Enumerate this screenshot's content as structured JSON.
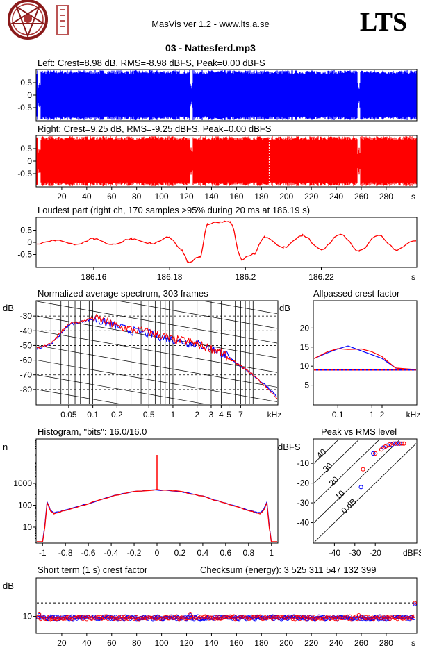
{
  "header": {
    "app_title": "MasVis ver 1.2 - www.lts.a.se",
    "brand": "LTS",
    "file_title": "03 - Nattesferd.mp3"
  },
  "colors": {
    "left": "#0000ff",
    "right": "#ff0000",
    "dashed": "#000000"
  },
  "chart_data": [
    {
      "type": "area",
      "title": "Left: Crest=8.98 dB, RMS=-8.98 dBFS, Peak=0.00 dBFS",
      "series": [
        {
          "name": "Left",
          "color": "#0000ff"
        }
      ],
      "ylim": [
        -1,
        1
      ],
      "y_ticks": [
        0.5,
        0,
        -0.5
      ],
      "y_tick_labels": [
        "0.5",
        "0",
        "-0.5"
      ],
      "x_unit": "s",
      "xlim": [
        0,
        304
      ],
      "envelope": "near full scale throughout",
      "dips_at_s": [
        2,
        124,
        258
      ]
    },
    {
      "type": "area",
      "title": "Right: Crest=9.25 dB, RMS=-9.25 dBFS, Peak=0.00 dBFS",
      "series": [
        {
          "name": "Right",
          "color": "#ff0000"
        }
      ],
      "ylim": [
        -1,
        1
      ],
      "y_ticks": [
        0.5,
        0,
        -0.5
      ],
      "y_tick_labels": [
        "0.5",
        "0",
        "-0.5"
      ],
      "x_ticks": [
        20,
        40,
        60,
        80,
        100,
        120,
        140,
        160,
        180,
        200,
        220,
        240,
        260,
        280
      ],
      "x_tick_labels": [
        "20",
        "40",
        "60",
        "80",
        "100",
        "120",
        "140",
        "160",
        "180",
        "200",
        "220",
        "240",
        "260",
        "280",
        "s"
      ],
      "xlim": [
        0,
        304
      ],
      "marker_at_s": 186.19,
      "dips_at_s": [
        2,
        124,
        258
      ]
    },
    {
      "type": "line",
      "title": "Loudest part (right ch, 170 samples >95% during 20 ms at 186.19 s)",
      "series": [
        {
          "name": "Right",
          "color": "#ff0000"
        }
      ],
      "xlim": [
        186.145,
        186.245
      ],
      "ylim": [
        -1,
        1
      ],
      "y_ticks": [
        0.5,
        0,
        -0.5
      ],
      "y_tick_labels": [
        "0.5",
        "0",
        "-0.5"
      ],
      "x_ticks": [
        186.16,
        186.18,
        186.2,
        186.22
      ],
      "x_tick_labels": [
        "186.16",
        "186.18",
        "186.2",
        "186.22",
        "s"
      ],
      "x": [
        186.145,
        186.15,
        186.155,
        186.16,
        186.165,
        186.17,
        186.175,
        186.18,
        186.183,
        186.185,
        186.188,
        186.19,
        186.193,
        186.196,
        186.199,
        186.202,
        186.205,
        186.21,
        186.215,
        186.22,
        186.225,
        186.23,
        186.235,
        186.24,
        186.245
      ],
      "values": [
        -0.05,
        0.1,
        -0.1,
        0.15,
        -0.1,
        0.15,
        -0.05,
        0.2,
        -0.3,
        -0.8,
        -0.6,
        0.75,
        0.85,
        0.85,
        -0.7,
        -0.5,
        0.2,
        -0.2,
        0.3,
        -0.3,
        0.35,
        -0.35,
        0.3,
        -0.3,
        0.1
      ]
    },
    {
      "type": "line",
      "title": "Normalized average spectrum, 303 frames",
      "xscale": "log",
      "xlim": [
        0.02,
        20
      ],
      "ylim": [
        -90,
        -20
      ],
      "ylabel": "dB",
      "xlabel": "kHz",
      "y_ticks": [
        -30,
        -40,
        -50,
        -60,
        -70,
        -80
      ],
      "y_tick_labels": [
        "-30",
        "-40",
        "-50",
        "-60",
        "-70",
        "-80"
      ],
      "x_ticks": [
        0.05,
        0.1,
        0.2,
        0.5,
        1,
        2,
        3,
        4,
        5,
        7
      ],
      "x_tick_labels": [
        "0.05",
        "0.1",
        "0.2",
        "0.5",
        "1",
        "2",
        "3",
        "4",
        "5",
        "7",
        "kHz"
      ],
      "x": [
        0.02,
        0.03,
        0.04,
        0.05,
        0.07,
        0.1,
        0.15,
        0.2,
        0.3,
        0.5,
        0.7,
        1,
        1.5,
        2,
        3,
        4,
        5,
        7,
        10,
        15,
        20
      ],
      "series": [
        {
          "name": "Left",
          "color": "#0000ff",
          "values": [
            -52,
            -49,
            -42,
            -36,
            -34,
            -32,
            -35,
            -37,
            -40,
            -42,
            -44,
            -46,
            -48,
            -49,
            -52,
            -55,
            -58,
            -64,
            -70,
            -78,
            -85
          ]
        },
        {
          "name": "Right",
          "color": "#ff0000",
          "values": [
            -52,
            -49,
            -41,
            -35,
            -34,
            -31,
            -34,
            -37,
            -39,
            -41,
            -43,
            -46,
            -47,
            -49,
            -52,
            -55,
            -59,
            -64,
            -70,
            -79,
            -86
          ]
        }
      ]
    },
    {
      "type": "line",
      "title": "Allpassed crest factor",
      "xscale": "log",
      "xlim": [
        0.02,
        20
      ],
      "ylim": [
        0,
        27
      ],
      "ylabel": "dB",
      "xlabel": "kHz",
      "y_ticks": [
        5,
        10,
        15,
        20
      ],
      "y_tick_labels": [
        "5",
        "10",
        "15",
        "20"
      ],
      "x_ticks": [
        0.1,
        1,
        2
      ],
      "x_tick_labels": [
        "0.1",
        "1",
        "2",
        "kHz"
      ],
      "reference_dashed": 8.98,
      "x": [
        0.02,
        0.05,
        0.1,
        0.2,
        0.5,
        1,
        2,
        5,
        10,
        20
      ],
      "series": [
        {
          "name": "Left",
          "color": "#0000ff",
          "values": [
            12,
            13.5,
            14.5,
            15.3,
            14,
            13,
            12,
            9.5,
            9.2,
            9
          ]
        },
        {
          "name": "Right",
          "color": "#ff0000",
          "values": [
            12,
            13.8,
            14.6,
            14.4,
            14.5,
            13.8,
            12.5,
            9.5,
            9.3,
            9.1
          ]
        }
      ]
    },
    {
      "type": "line",
      "title": "Histogram, \"bits\": 16.0/16.0",
      "yscale": "log",
      "ylabel": "n",
      "xlim": [
        -1.05,
        1.05
      ],
      "ylim": [
        2,
        100000
      ],
      "y_ticks": [
        10,
        100,
        1000
      ],
      "y_tick_labels": [
        "10",
        "100",
        "1000"
      ],
      "x_ticks": [
        -1,
        -0.8,
        -0.6,
        -0.4,
        -0.2,
        0,
        0.2,
        0.4,
        0.6,
        0.8,
        1
      ],
      "x_tick_labels": [
        "-1",
        "-0.8",
        "-0.6",
        "-0.4",
        "-0.2",
        "0",
        "0.2",
        "0.4",
        "0.6",
        "0.8",
        "1"
      ],
      "x": [
        -1,
        -0.98,
        -0.96,
        -0.93,
        -0.9,
        -0.85,
        -0.8,
        -0.6,
        -0.4,
        -0.2,
        0,
        0.2,
        0.4,
        0.6,
        0.8,
        0.85,
        0.9,
        0.93,
        0.96,
        0.98,
        1
      ],
      "series": [
        {
          "name": "Left",
          "color": "#0000ff",
          "values": [
            2,
            12,
            140,
            60,
            45,
            50,
            60,
            120,
            260,
            430,
            500,
            430,
            260,
            120,
            60,
            50,
            45,
            60,
            140,
            12,
            2
          ]
        },
        {
          "name": "Right",
          "color": "#ff0000",
          "values": [
            2,
            10,
            130,
            55,
            42,
            48,
            58,
            118,
            255,
            425,
            510,
            425,
            255,
            118,
            58,
            48,
            42,
            55,
            130,
            10,
            2
          ]
        }
      ],
      "spike_at_zero": 20000
    },
    {
      "type": "scatter",
      "title": "Peak vs RMS level",
      "xlabel": "dBFS",
      "ylabel": "dBFS",
      "xlim": [
        -50,
        0
      ],
      "ylim": [
        -50,
        2
      ],
      "x_ticks": [
        -40,
        -30,
        -20
      ],
      "x_tick_labels": [
        "-40",
        "-30",
        "-20",
        "dBFS"
      ],
      "y_ticks": [
        -10,
        -20,
        -30,
        -40
      ],
      "y_tick_labels": [
        "-10",
        "-20",
        "-30",
        "-40"
      ],
      "diagonal_labels": [
        "40",
        "30",
        "20",
        "10",
        "0 dB"
      ],
      "series": [
        {
          "name": "Left",
          "color": "#0000ff",
          "points": [
            [
              -27,
              -22
            ],
            [
              -21,
              -5
            ],
            [
              -16,
              -2
            ],
            [
              -14,
              -1
            ],
            [
              -12,
              -0.5
            ],
            [
              -10,
              0
            ],
            [
              -9,
              0
            ],
            [
              -8,
              0
            ]
          ]
        },
        {
          "name": "Right",
          "color": "#ff0000",
          "points": [
            [
              -26,
              -13
            ],
            [
              -20,
              -5
            ],
            [
              -17,
              -3
            ],
            [
              -15,
              -1.5
            ],
            [
              -13,
              -0.5
            ],
            [
              -11,
              0
            ],
            [
              -9,
              0
            ],
            [
              -7,
              0
            ],
            [
              -6,
              0
            ]
          ]
        }
      ]
    },
    {
      "type": "scatter",
      "title": "Short term (1 s) crest factor",
      "checksum": "Checksum (energy):  3 525 311 547 132 399",
      "ylabel": "dB",
      "xlim": [
        0,
        304
      ],
      "ylim": [
        4,
        24
      ],
      "y_ticks": [
        10
      ],
      "y_tick_labels": [
        "10"
      ],
      "x_ticks": [
        20,
        40,
        60,
        80,
        100,
        120,
        140,
        160,
        180,
        200,
        220,
        240,
        260,
        280
      ],
      "x_tick_labels": [
        "20",
        "40",
        "60",
        "80",
        "100",
        "120",
        "140",
        "160",
        "180",
        "200",
        "220",
        "240",
        "260",
        "280",
        "s"
      ],
      "reference_dashed": 15,
      "typical_value": 9.5,
      "outliers": [
        [
          2,
          11
        ],
        [
          123,
          11
        ],
        [
          258,
          10.5
        ],
        [
          303,
          15
        ]
      ]
    }
  ]
}
